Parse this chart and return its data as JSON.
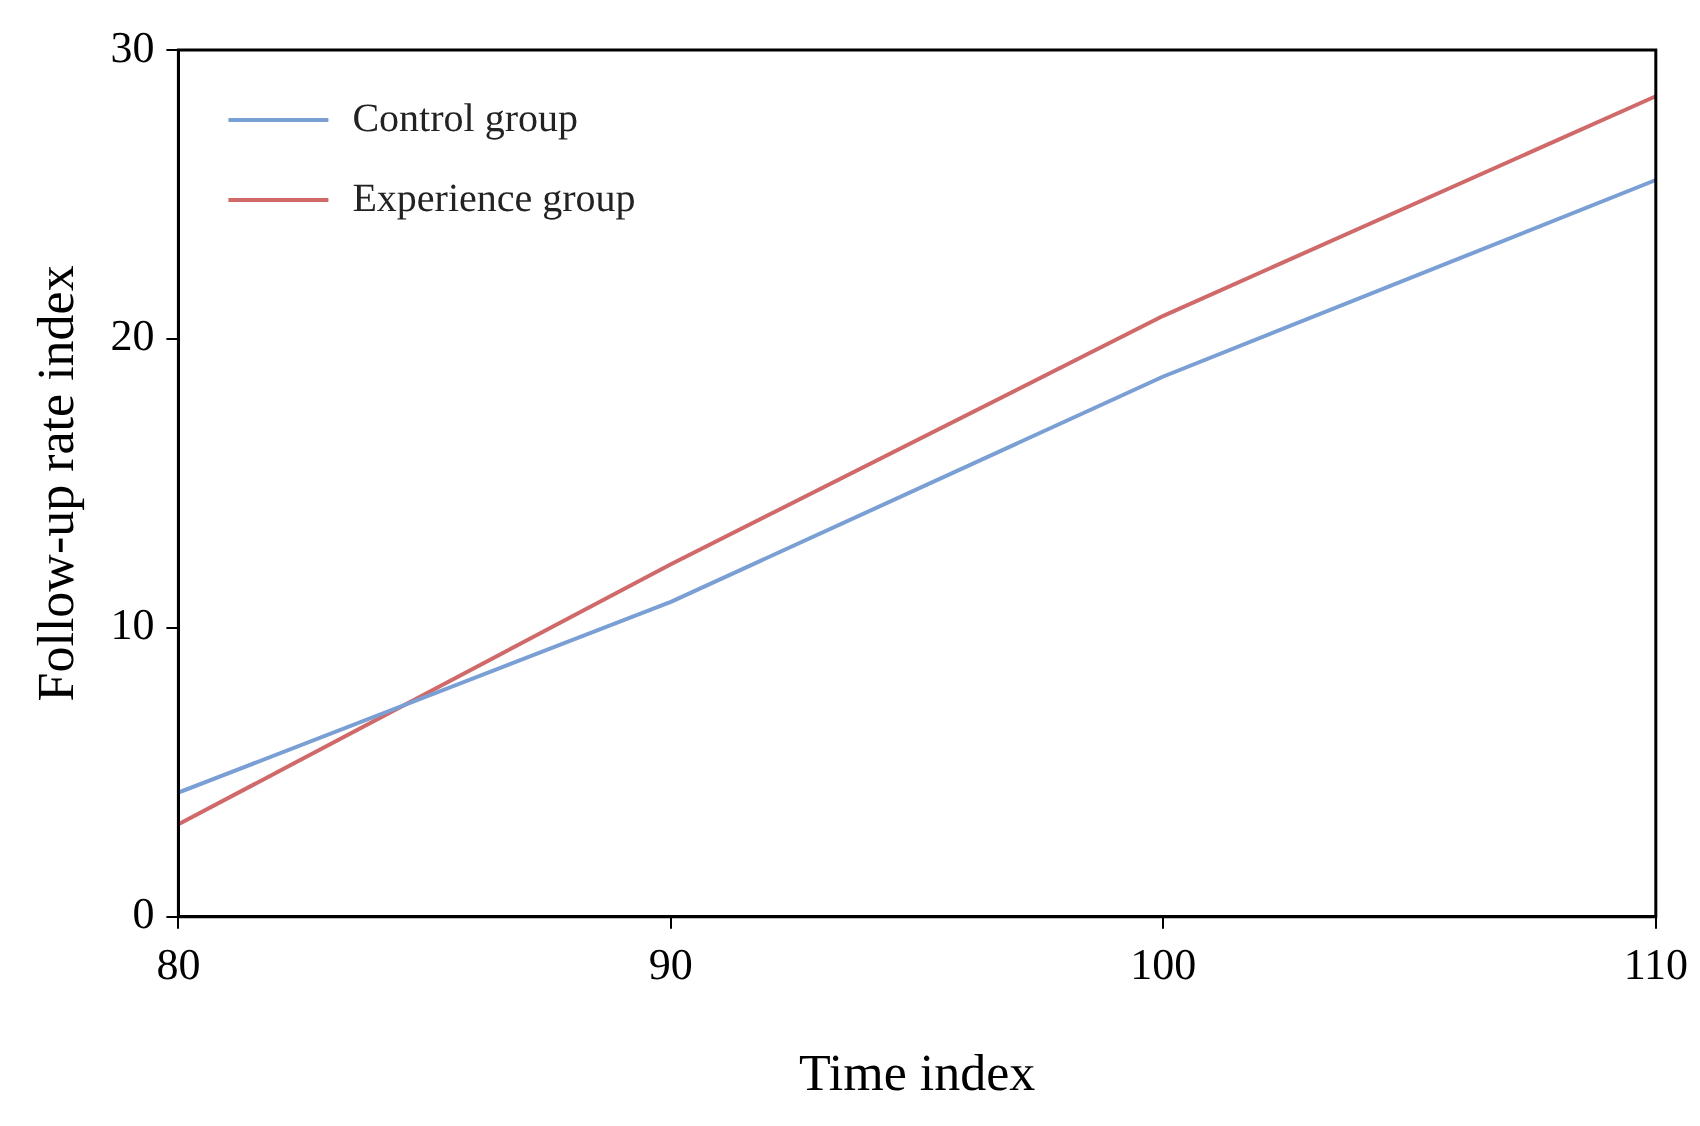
{
  "chart_data": {
    "type": "line",
    "xlabel": "Time index",
    "ylabel": "Follow-up rate index",
    "x": [
      80,
      90,
      100,
      110
    ],
    "series": [
      {
        "name": "Control group",
        "color": "#7a9fd4",
        "values": [
          4.3,
          10.9,
          18.7,
          25.5
        ]
      },
      {
        "name": "Experience group",
        "color": "#d06a6a",
        "values": [
          3.2,
          12.2,
          20.8,
          28.4
        ]
      }
    ],
    "xlim": [
      80,
      110
    ],
    "xticks": [
      80,
      90,
      100,
      110
    ],
    "ylim": [
      0,
      30
    ],
    "yticks": [
      0,
      10,
      20,
      30
    ],
    "grid": false,
    "legend": "top left",
    "marker": "none",
    "line_style": "solid"
  }
}
